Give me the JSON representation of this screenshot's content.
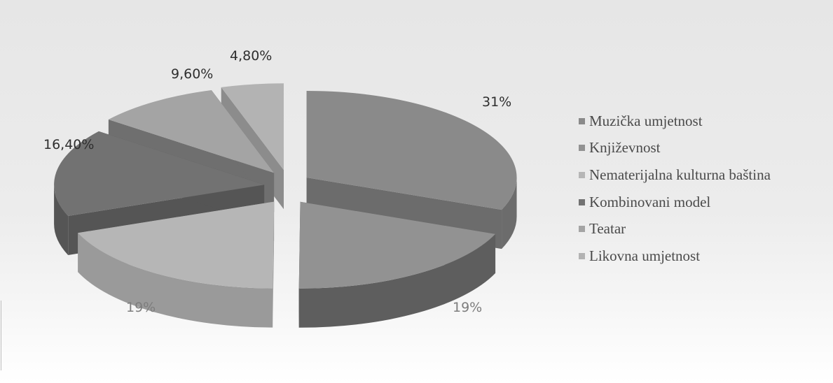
{
  "chart_data": {
    "type": "pie",
    "variant": "3d-exploded",
    "title": "",
    "slices": [
      {
        "name": "Muzička umjetnost",
        "value": 31,
        "label": "31%",
        "color": "#8a8a8a",
        "side_color": "#6c6c6c"
      },
      {
        "name": "Književnost",
        "value": 19,
        "label": "19%",
        "color": "#929292",
        "side_color": "#5e5e5e"
      },
      {
        "name": "Nematerijalna kulturna baština",
        "value": 19,
        "label": "19%",
        "color": "#b6b6b6",
        "side_color": "#9a9a9a"
      },
      {
        "name": "Kombinovani model",
        "value": 16.4,
        "label": "16,40%",
        "color": "#727272",
        "side_color": "#555555"
      },
      {
        "name": "Teatar",
        "value": 9.6,
        "label": "9,60%",
        "color": "#a4a4a4",
        "side_color": "#6f6f6f"
      },
      {
        "name": "Likovna umjetnost",
        "value": 4.8,
        "label": "4,80%",
        "color": "#b3b3b3",
        "side_color": "#8c8c8c"
      }
    ],
    "legend": {
      "placement": "right",
      "entries": [
        "Muzička umjetnost",
        "Književnost",
        "Nematerijalna kulturna baština",
        "Kombinovani model",
        "Teatar",
        "Likovna umjetnost"
      ]
    }
  }
}
